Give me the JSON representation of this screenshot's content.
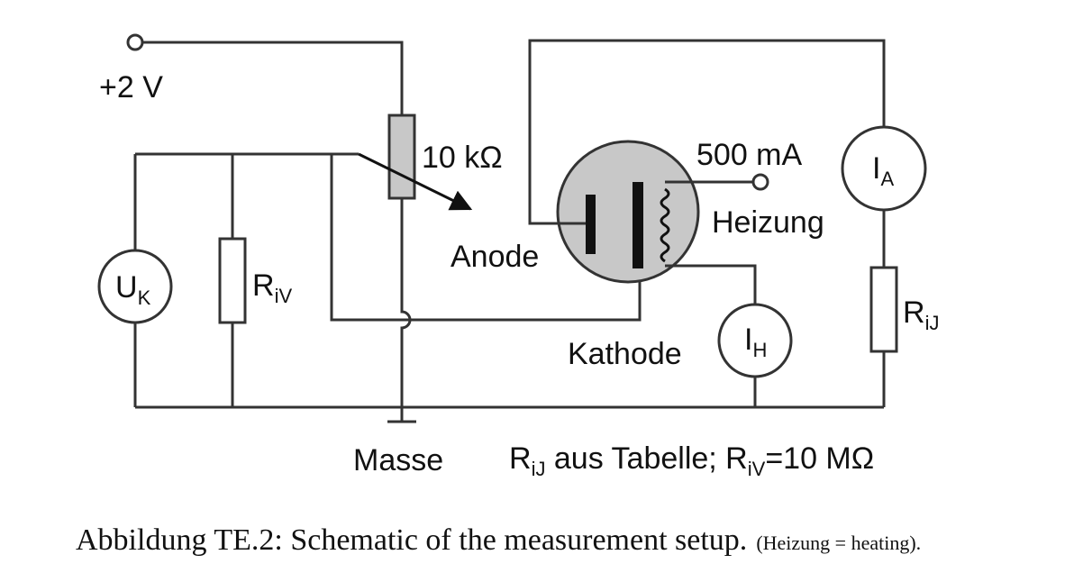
{
  "labels": {
    "voltage": "+2 V",
    "potentiometer": "10 kΩ",
    "anode": "Anode",
    "cathode": "Kathode",
    "heating_current": "500 mA",
    "heating": "Heizung",
    "ground": "Masse",
    "uk_main": "U",
    "uk_sub": "K",
    "riv_main": "R",
    "riv_sub": "iV",
    "ia_main": "I",
    "ia_sub": "A",
    "ih_main": "I",
    "ih_sub": "H",
    "rij_main": "R",
    "rij_sub": "iJ",
    "note_r1": "R",
    "note_r1_sub": "iJ",
    "note_mid": " aus Tabelle; R",
    "note_r2_sub": "iV",
    "note_end": "=10 MΩ"
  },
  "caption": {
    "main": "Abbildung TE.2: Schematic of the measurement setup.",
    "small": "(Heizung = heating)."
  },
  "colors": {
    "wire": "#333333",
    "tube_fill": "#c8c8c8",
    "resistor_fill": "#c8c8c8"
  }
}
